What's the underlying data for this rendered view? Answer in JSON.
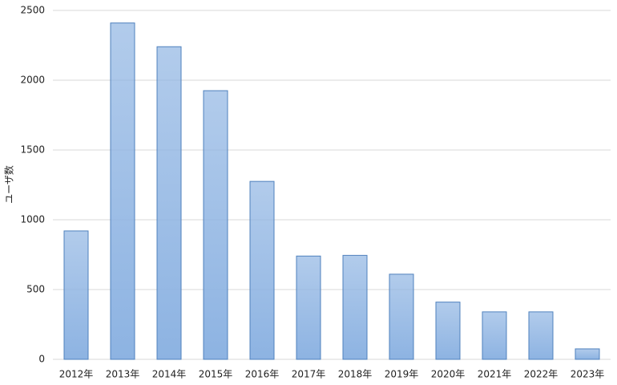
{
  "chart_data": {
    "type": "bar",
    "y_label": "ユーザ数",
    "categories": [
      "2012年",
      "2013年",
      "2014年",
      "2015年",
      "2016年",
      "2017年",
      "2018年",
      "2019年",
      "2020年",
      "2021年",
      "2022年",
      "2023年"
    ],
    "values": [
      920,
      2410,
      2240,
      1925,
      1275,
      740,
      745,
      610,
      410,
      340,
      340,
      75
    ],
    "color": "#8db3e2",
    "edge_color": "#4f81bd",
    "ylim": [
      0,
      2500
    ],
    "yticks": [
      0,
      500,
      1000,
      1500,
      2000,
      2500
    ],
    "grid": true
  }
}
